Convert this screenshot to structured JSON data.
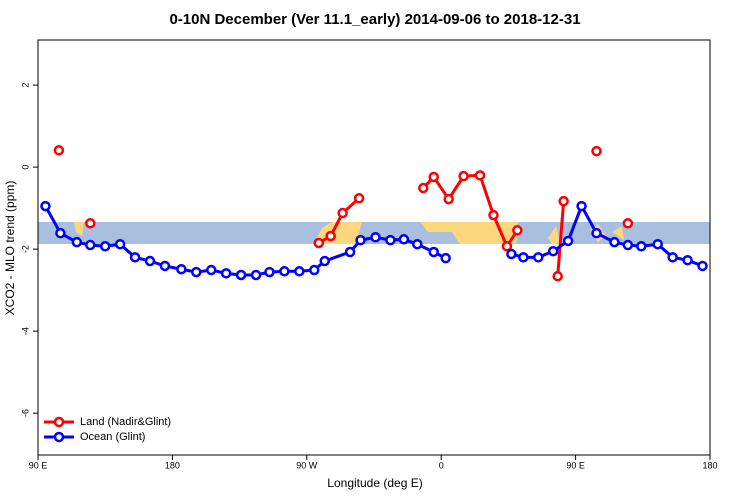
{
  "chart_data": {
    "type": "line",
    "title": "0-10N December (Ver 11.1_early)   2014-09-06 to 2018-12-31",
    "x_label": "Longitude (deg E)",
    "y_label": "XCO2 - MLO trend (ppm)",
    "xlim": [
      90,
      540
    ],
    "ylim": [
      -7.02,
      3.1
    ],
    "xticks": [
      {
        "value": 90,
        "label": "90 E"
      },
      180,
      {
        "value": 270,
        "label": "90 W"
      },
      {
        "value": 360,
        "label": "0"
      },
      {
        "value": 450,
        "label": "90 E"
      },
      {
        "value": 540,
        "label": "180"
      }
    ],
    "yticks": [
      -6,
      -4,
      -2,
      0,
      2
    ],
    "legend": "bottom-left",
    "series": [
      {
        "name": "Land (Nadir&Glint)",
        "color": "#ff0000",
        "x": [
          104,
          115,
          125,
          200,
          278,
          286,
          294,
          305,
          330,
          348,
          355,
          365,
          375,
          386,
          395,
          404,
          411,
          425,
          438,
          442,
          450,
          464,
          475,
          485
        ],
        "values": [
          0.41,
          null,
          -1.37,
          null,
          -1.85,
          -1.68,
          -1.12,
          -0.76,
          null,
          -0.51,
          -0.24,
          -0.78,
          -0.22,
          -0.2,
          -1.17,
          -1.93,
          -1.54,
          null,
          -2.66,
          -0.83,
          null,
          0.39,
          null,
          -1.37
        ]
      },
      {
        "name": "Ocean (Glint)",
        "color": "#0000ff",
        "x": [
          95,
          105,
          116,
          125,
          135,
          145,
          155,
          165,
          175,
          186,
          196,
          206,
          216,
          226,
          236,
          245,
          255,
          265,
          275,
          282,
          299,
          306,
          316,
          326,
          335,
          344,
          355,
          363,
          385,
          407,
          415,
          425,
          435,
          445,
          454,
          464,
          476,
          485,
          494,
          505,
          515,
          525,
          535
        ],
        "values": [
          -0.95,
          -1.61,
          -1.83,
          -1.9,
          -1.93,
          -1.88,
          -2.2,
          -2.29,
          -2.41,
          -2.49,
          -2.56,
          -2.51,
          -2.59,
          -2.63,
          -2.63,
          -2.56,
          -2.54,
          -2.54,
          -2.51,
          -2.29,
          -2.07,
          -1.78,
          -1.71,
          -1.78,
          -1.76,
          -1.88,
          -2.07,
          -2.22,
          null,
          -2.12,
          -2.2,
          -2.2,
          -2.05,
          -1.8,
          -0.95,
          -1.61,
          -1.83,
          -1.9,
          -1.93,
          -1.88,
          -2.2,
          -2.27,
          -2.41
        ]
      }
    ]
  }
}
